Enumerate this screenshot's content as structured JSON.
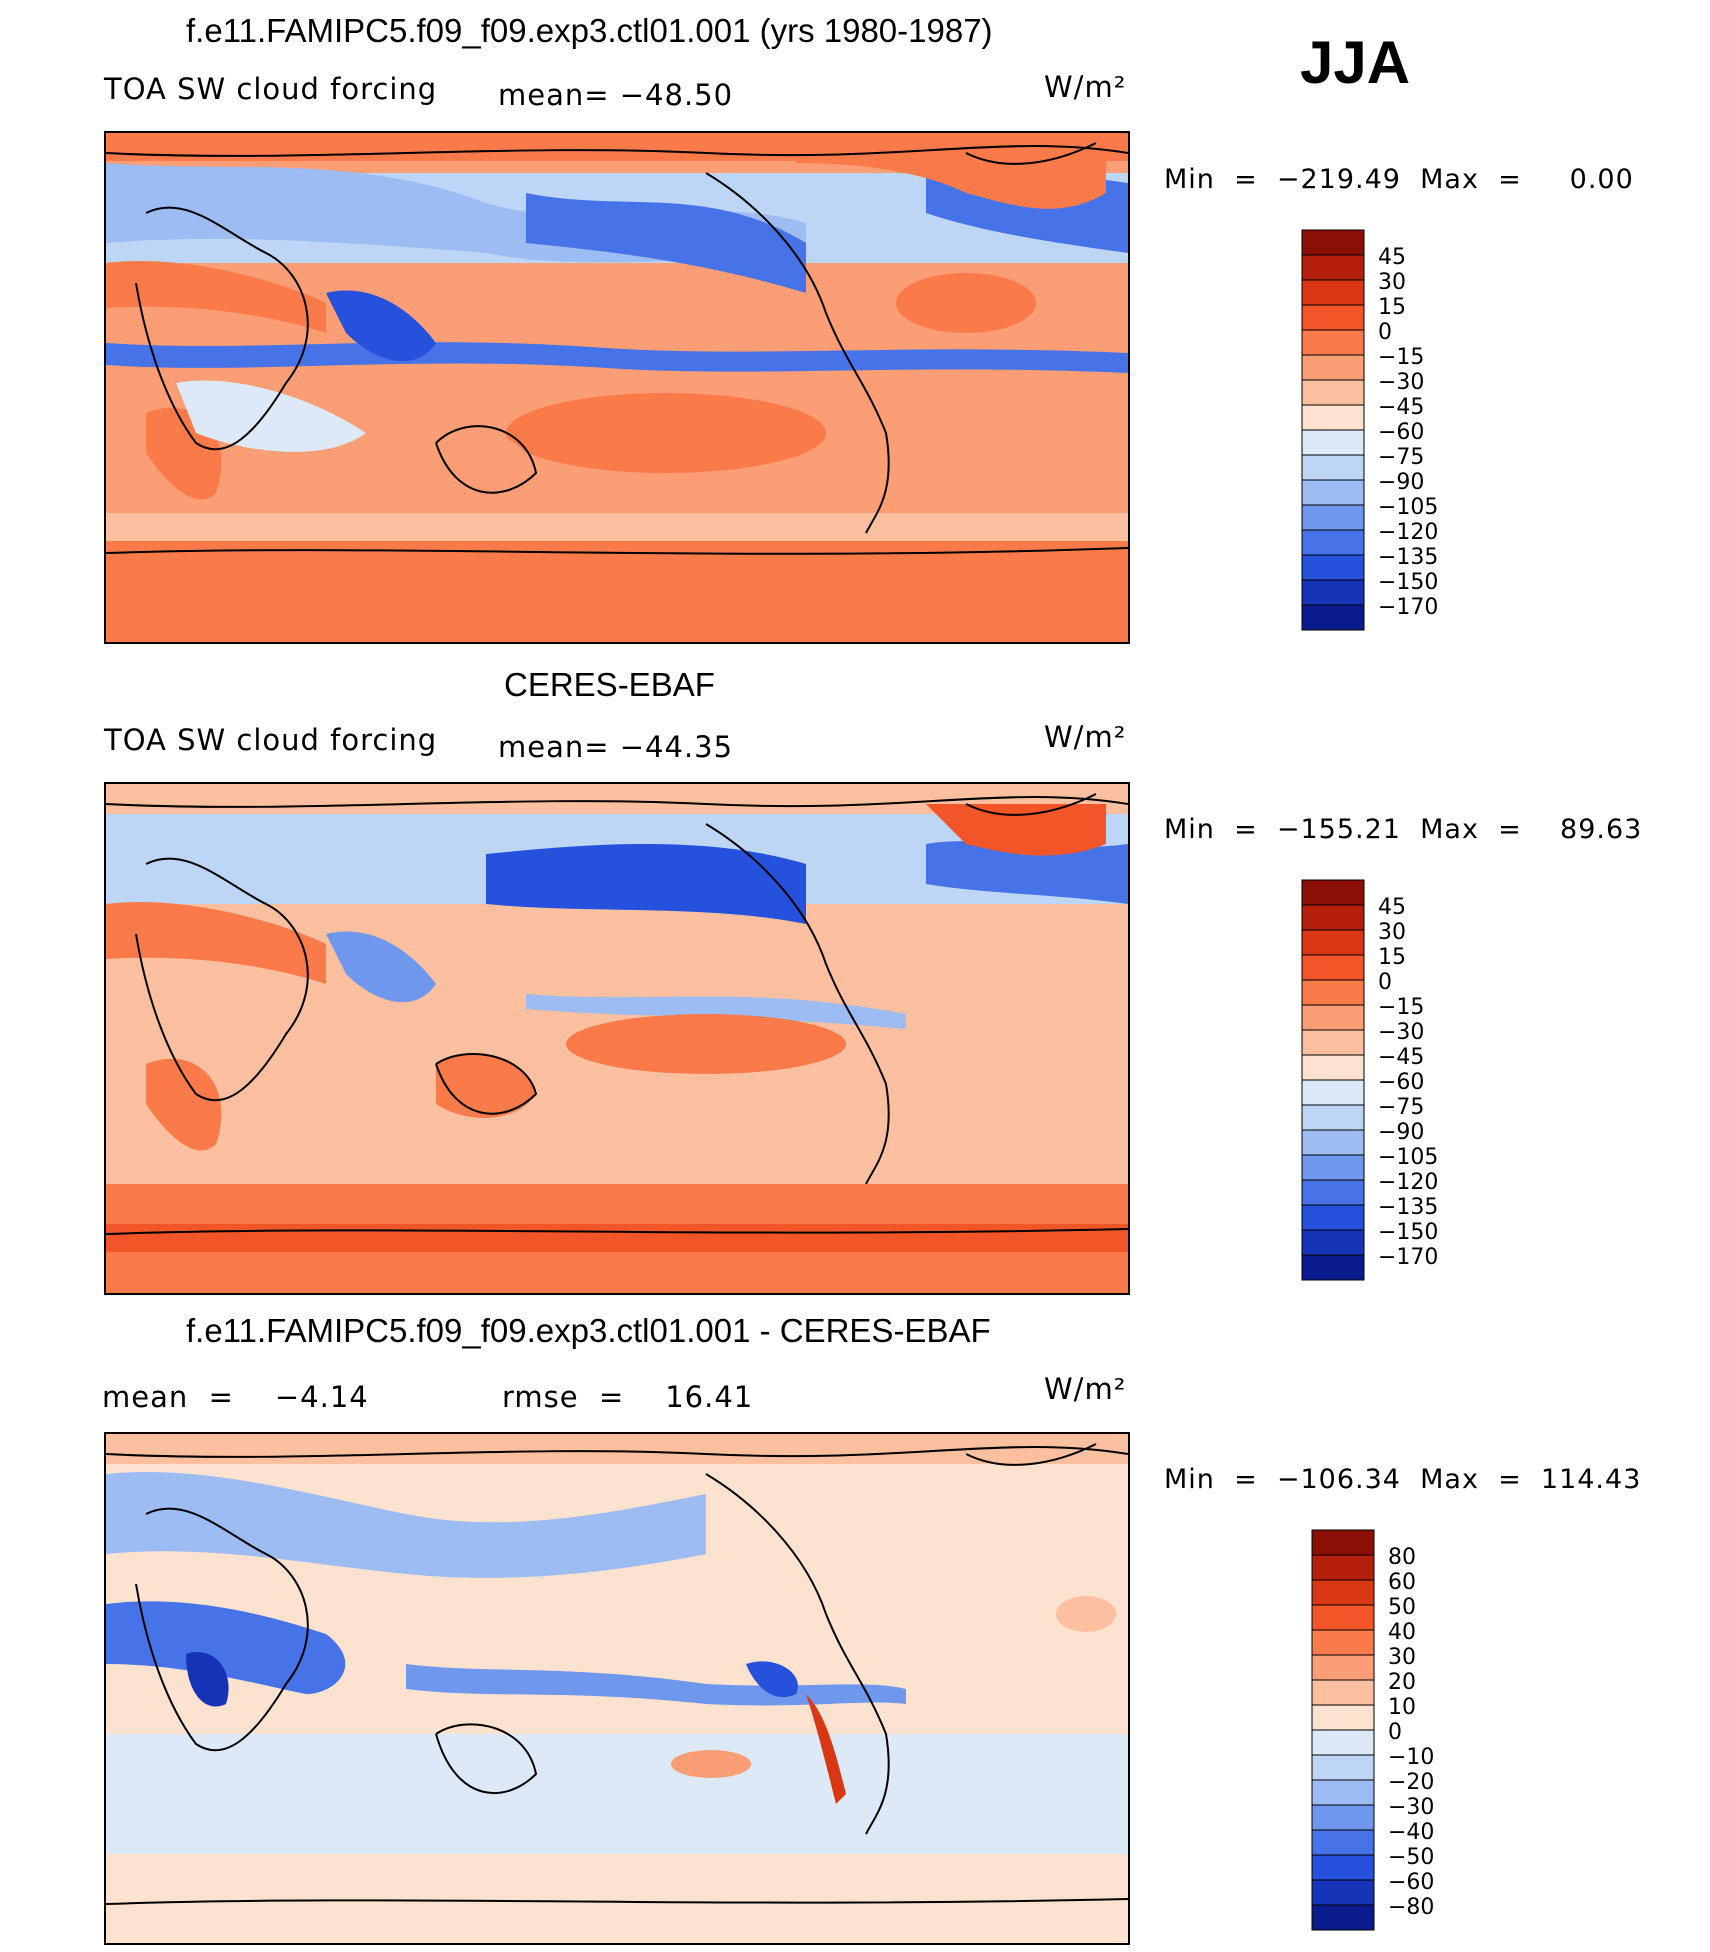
{
  "season": "JJA",
  "panels": [
    {
      "title": "f.e11.FAMIPC5.f09_f09.exp3.ctl01.001 (yrs 1980-1987)",
      "left_label": "TOA SW cloud forcing",
      "center_label": "mean= −48.50",
      "units": "W/m²",
      "min_max": "Min  =  −219.49  Max  =     0.00",
      "colorbar": {
        "levels": [
          "45",
          "30",
          "15",
          "0",
          "−15",
          "−30",
          "−45",
          "−60",
          "−75",
          "−90",
          "−105",
          "−120",
          "−135",
          "−150",
          "−170"
        ],
        "colors": [
          "#8b0f06",
          "#b5200c",
          "#d93713",
          "#f25528",
          "#fa7a4a",
          "#fb9d75",
          "#fcc0a0",
          "#fde3cf",
          "#dde9f7",
          "#bed6f5",
          "#9cbcf3",
          "#6f97ee",
          "#4673e8",
          "#2551dd",
          "#1634b8",
          "#0a1b8e"
        ]
      }
    },
    {
      "title": "CERES-EBAF",
      "left_label": "TOA SW cloud forcing",
      "center_label": "mean= −44.35",
      "units": "W/m²",
      "min_max": "Min  =  −155.21  Max  =    89.63",
      "colorbar": {
        "levels": [
          "45",
          "30",
          "15",
          "0",
          "−15",
          "−30",
          "−45",
          "−60",
          "−75",
          "−90",
          "−105",
          "−120",
          "−135",
          "−150",
          "−170"
        ],
        "colors": [
          "#8b0f06",
          "#b5200c",
          "#d93713",
          "#f25528",
          "#fa7a4a",
          "#fb9d75",
          "#fcc0a0",
          "#fde3cf",
          "#dde9f7",
          "#bed6f5",
          "#9cbcf3",
          "#6f97ee",
          "#4673e8",
          "#2551dd",
          "#1634b8",
          "#0a1b8e"
        ]
      }
    },
    {
      "title": "f.e11.FAMIPC5.f09_f09.exp3.ctl01.001 - CERES-EBAF",
      "left_label": "mean  =    −4.14",
      "center_label": "rmse  =    16.41",
      "units": "W/m²",
      "min_max": "Min  =  −106.34  Max  =  114.43",
      "colorbar": {
        "levels": [
          "80",
          "60",
          "50",
          "40",
          "30",
          "20",
          "10",
          "0",
          "−10",
          "−20",
          "−30",
          "−40",
          "−50",
          "−60",
          "−80"
        ],
        "colors": [
          "#8b0f06",
          "#b5200c",
          "#d93713",
          "#f25528",
          "#fa7a4a",
          "#fb9d75",
          "#fcc0a0",
          "#fde3cf",
          "#dde9f7",
          "#bed6f5",
          "#9cbcf3",
          "#6f97ee",
          "#4673e8",
          "#2551dd",
          "#1634b8",
          "#0a1b8e"
        ]
      }
    }
  ]
}
